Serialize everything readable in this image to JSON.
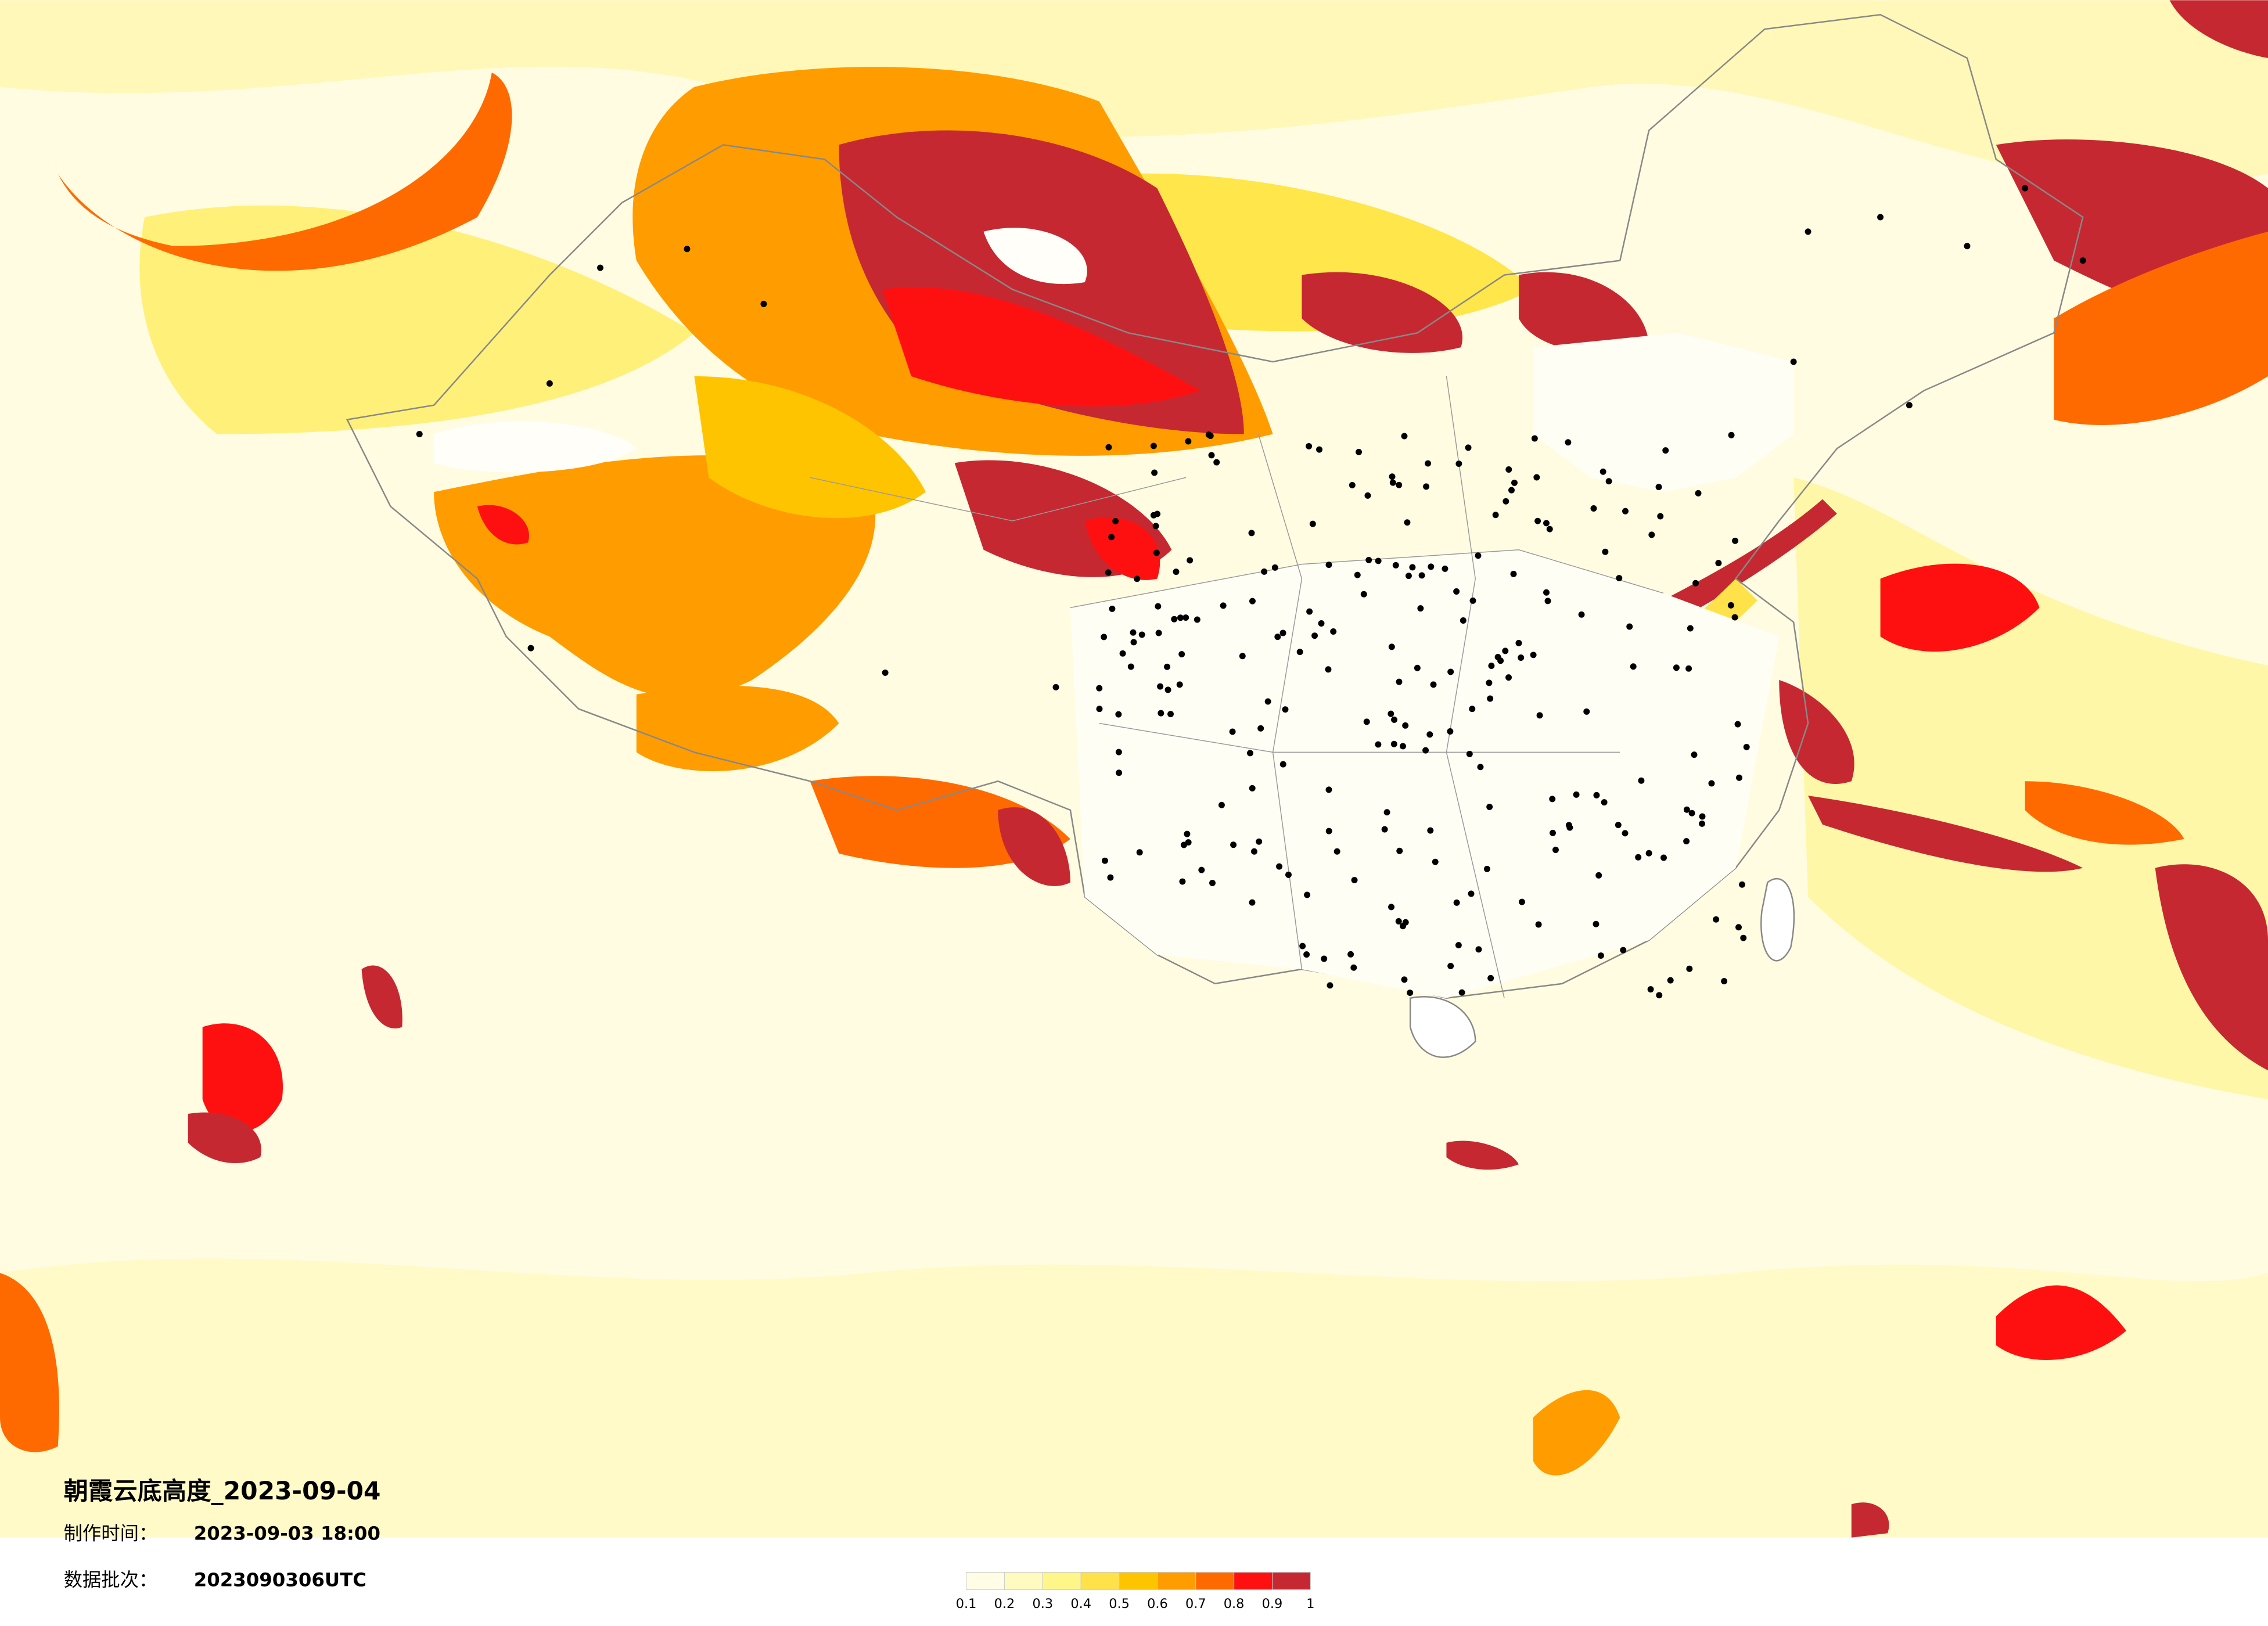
{
  "map": {
    "title": "朝霞云底高度_2023-09-04",
    "made_label": "制作时间：",
    "made_time": "2023-09-03 18:00",
    "batch_label": "数据批次：",
    "batch": "2023090306UTC",
    "colorbar": {
      "colors": [
        "#fffde6",
        "#fffbc0",
        "#fff68a",
        "#ffe24a",
        "#ffc400",
        "#ff9c00",
        "#ff6a00",
        "#ff1010",
        "#c62832"
      ],
      "ticks": [
        0.1,
        0.2,
        0.3,
        0.4,
        0.5,
        0.6,
        0.7,
        0.8,
        0.9,
        1
      ]
    }
  }
}
